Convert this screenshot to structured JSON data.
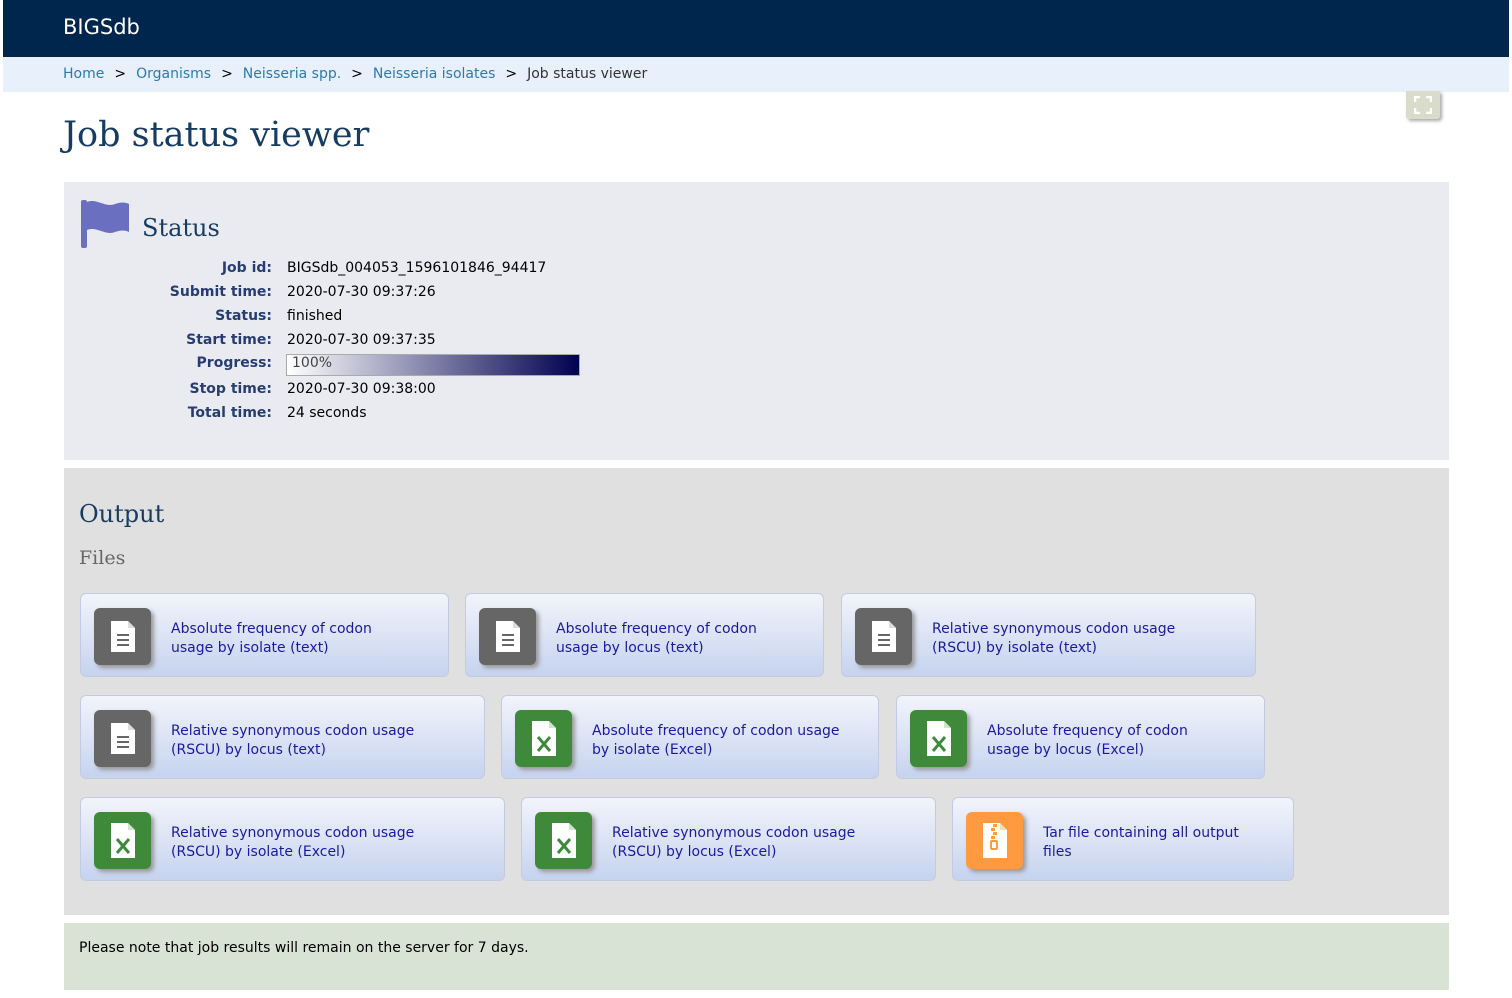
{
  "header": {
    "brand": "BIGSdb"
  },
  "breadcrumb": [
    {
      "label": "Home",
      "link": true
    },
    {
      "label": "Organisms",
      "link": true
    },
    {
      "label": "Neisseria spp.",
      "link": true
    },
    {
      "label": "Neisseria isolates",
      "link": true
    },
    {
      "label": "Job status viewer",
      "link": false
    }
  ],
  "breadcrumb_separator": ">",
  "page_title": "Job status viewer",
  "status": {
    "title": "Status",
    "job_id_label": "Job id:",
    "job_id": "BIGSdb_004053_1596101846_94417",
    "submit_time_label": "Submit time:",
    "submit_time": "2020-07-30 09:37:26",
    "status_label": "Status:",
    "status": "finished",
    "start_time_label": "Start time:",
    "start_time": "2020-07-30 09:37:35",
    "progress_label": "Progress:",
    "progress_text": "100%",
    "progress": 1.0,
    "stop_time_label": "Stop time:",
    "stop_time": "2020-07-30 09:38:00",
    "total_time_label": "Total time:",
    "total_time": "24 seconds"
  },
  "output": {
    "title": "Output",
    "files_title": "Files",
    "files": [
      {
        "line1": "Absolute frequency of codon",
        "line2": "usage by isolate (text)",
        "icon": "text-file-icon",
        "color": "#666666"
      },
      {
        "line1": "Absolute frequency of codon",
        "line2": "usage by locus (text)",
        "icon": "text-file-icon",
        "color": "#666666"
      },
      {
        "line1": "Relative synonymous codon usage",
        "line2": "(RSCU) by isolate (text)",
        "icon": "text-file-icon",
        "color": "#666666"
      },
      {
        "line1": "Relative synonymous codon usage",
        "line2": "(RSCU) by locus (text)",
        "icon": "text-file-icon",
        "color": "#666666"
      },
      {
        "line1": "Absolute frequency of codon usage",
        "line2": "by isolate (Excel)",
        "icon": "excel-file-icon",
        "color": "#3f8a3a"
      },
      {
        "line1": "Absolute frequency of codon",
        "line2": "usage by locus (Excel)",
        "icon": "excel-file-icon",
        "color": "#3f8a3a"
      },
      {
        "line1": "Relative synonymous codon usage",
        "line2": "(RSCU) by isolate (Excel)",
        "icon": "excel-file-icon",
        "color": "#3f8a3a"
      },
      {
        "line1": "Relative synonymous codon usage",
        "line2": "(RSCU) by locus (Excel)",
        "icon": "excel-file-icon",
        "color": "#3f8a3a"
      },
      {
        "line1": "Tar file containing all output",
        "line2": "files",
        "icon": "archive-file-icon",
        "color": "#ff9a40"
      }
    ]
  },
  "note": "Please note that job results will remain on the server for 7 days.",
  "colors": {
    "header": "#00264d",
    "heading": "#173c62",
    "link": "#1a1aa0",
    "flag": "#6a6fbf"
  }
}
